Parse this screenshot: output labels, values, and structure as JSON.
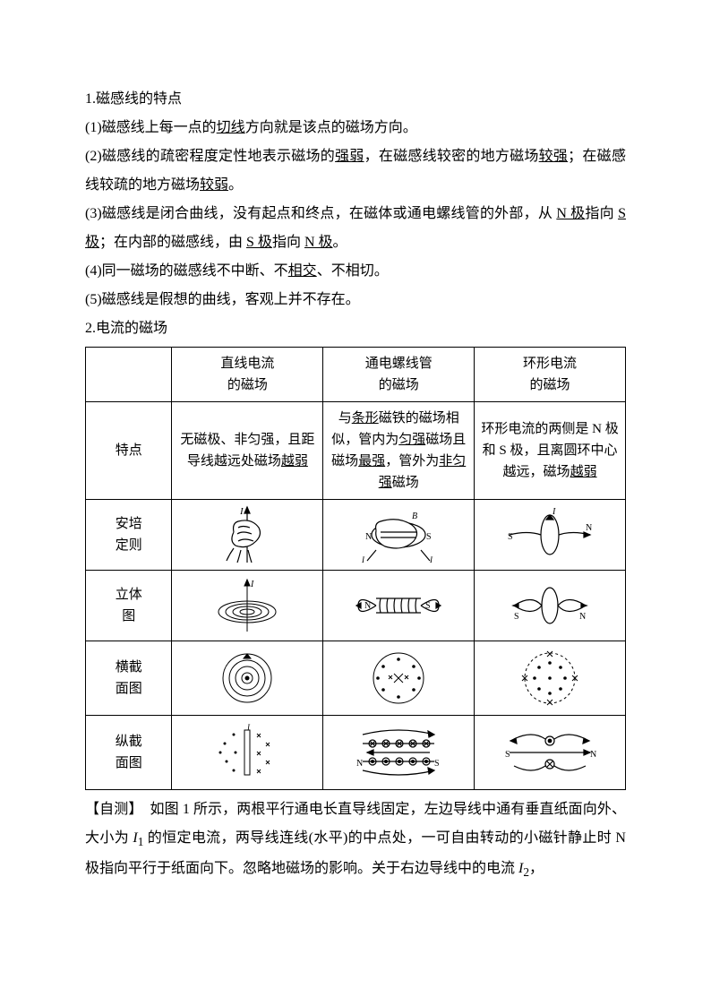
{
  "text": {
    "s1_title": "1.磁感线的特点",
    "p1_a": "(1)磁感线上每一点的",
    "p1_u": "切线",
    "p1_b": "方向就是该点的磁场方向。",
    "p2_a": "(2)磁感线的疏密程度定性地表示磁场的",
    "p2_u1": "强弱",
    "p2_b": "，在磁感线较密的地方磁场",
    "p2_u2": "较强",
    "p2_c": "；在磁感线较疏的地方磁场",
    "p2_u3": "较弱",
    "p2_d": "。",
    "p3_a": "(3)磁感线是闭合曲线，没有起点和终点，在磁体或通电螺线管的外部，从 ",
    "p3_u1": "N 极",
    "p3_b": "指向 ",
    "p3_u2": "S 极",
    "p3_c": "；在内部的磁感线，由 ",
    "p3_u3": "S 极",
    "p3_d": "指向 ",
    "p3_u4": "N 极",
    "p3_e": "。",
    "p4_a": "(4)同一磁场的磁感线不中断、不",
    "p4_u": "相交",
    "p4_b": "、不相切。",
    "p5": "(5)磁感线是假想的曲线，客观上并不存在。",
    "s2_title": "2.电流的磁场",
    "q_a": "【自测】　如图 1 所示，两根平行通电长直导线固定，左边导线中通有垂直纸面向外、大小为 ",
    "q_i1": "I",
    "q_sub1": "1",
    "q_b": " 的恒定电流，两导线连线(水平)的中点处，一可自由转动的小磁针静止时 N 极指向平行于纸面向下。忽略地磁场的影响。关于右边导线中的电流 ",
    "q_i2": "I",
    "q_sub2": "2",
    "q_c": "，"
  },
  "table": {
    "header": [
      "",
      "直线电流\n的磁场",
      "通电螺线管\n的磁场",
      "环形电流\n的磁场"
    ],
    "row_labels": [
      "特点",
      "安培\n定则",
      "立体\n图",
      "横截\n面图",
      "纵截\n面图"
    ],
    "features": {
      "c1_a": "无磁极、非匀强，且距导线越远处磁场",
      "c1_u": "越弱",
      "c2_a": "与",
      "c2_u1": "条形",
      "c2_b": "磁铁的磁场相似，管内为",
      "c2_u2": "匀强",
      "c2_c": "磁场且磁场",
      "c2_u3": "最强",
      "c2_d": "，管外为",
      "c2_u4": "非匀强",
      "c2_e": "磁场",
      "c3_a": "环形电流的两侧是 N 极和 S 极，且离圆环中心越远，磁场",
      "c3_u": "越弱"
    }
  },
  "style": {
    "stroke": "#000000",
    "fill": "#ffffff"
  }
}
